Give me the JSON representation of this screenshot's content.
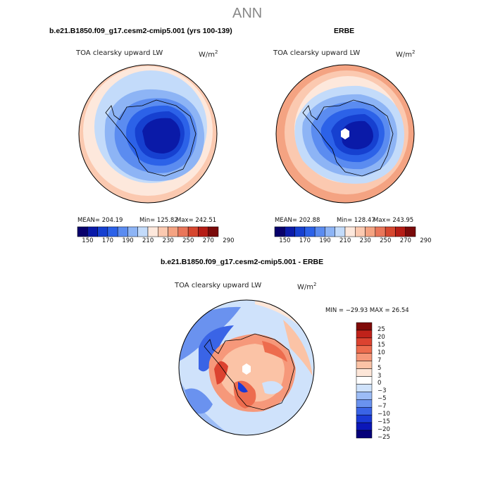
{
  "figure_title": "ANN",
  "colors": {
    "abs_scale": [
      "#08006b",
      "#0a1aa8",
      "#1640d0",
      "#2c62e8",
      "#5b8cf0",
      "#8db4f5",
      "#c3dbfa",
      "#fde8dc",
      "#fbc9b0",
      "#f4a382",
      "#e9765a",
      "#d6472f",
      "#b51d16",
      "#7a0a0a"
    ],
    "diff_scale": [
      "#06007a",
      "#0b17b8",
      "#1a3ad6",
      "#3a64e6",
      "#6a92ef",
      "#9cbcf6",
      "#cfe2fb",
      "#ffffff",
      "#fde6d8",
      "#fbc3a6",
      "#f6987a",
      "#ed6c4e",
      "#dc4330",
      "#c0221a",
      "#7f0a08"
    ]
  },
  "panels": {
    "model": {
      "case": "b.e21.B1850.f09_g17.cesm2-cmip5.001 (yrs 100-139)",
      "variable": "TOA clearsky upward LW",
      "units": "W/m",
      "units_exp": "2",
      "stats": {
        "mean": "MEAN= 204.19",
        "min": "Min= 125.82",
        "max": "Max= 242.51"
      },
      "colorbar_ticks": [
        "150",
        "170",
        "190",
        "210",
        "230",
        "250",
        "270",
        "290"
      ]
    },
    "obs": {
      "case": "ERBE",
      "variable": "TOA clearsky upward LW",
      "units": "W/m",
      "units_exp": "2",
      "stats": {
        "mean": "MEAN= 202.88",
        "min": "Min= 128.47",
        "max": "Max= 243.95"
      },
      "colorbar_ticks": [
        "150",
        "170",
        "190",
        "210",
        "230",
        "250",
        "270",
        "290"
      ]
    },
    "diff": {
      "case": "b.e21.B1850.f09_g17.cesm2-cmip5.001 - ERBE",
      "variable": "TOA clearsky upward LW",
      "units": "W/m",
      "units_exp": "2",
      "stats": "MIN = −29.93 MAX =  26.54",
      "colorbar_ticks": [
        "25",
        "20",
        "15",
        "10",
        "7",
        "5",
        "3",
        "0",
        "−3",
        "−5",
        "−7",
        "−10",
        "−15",
        "−20",
        "−25"
      ]
    }
  }
}
